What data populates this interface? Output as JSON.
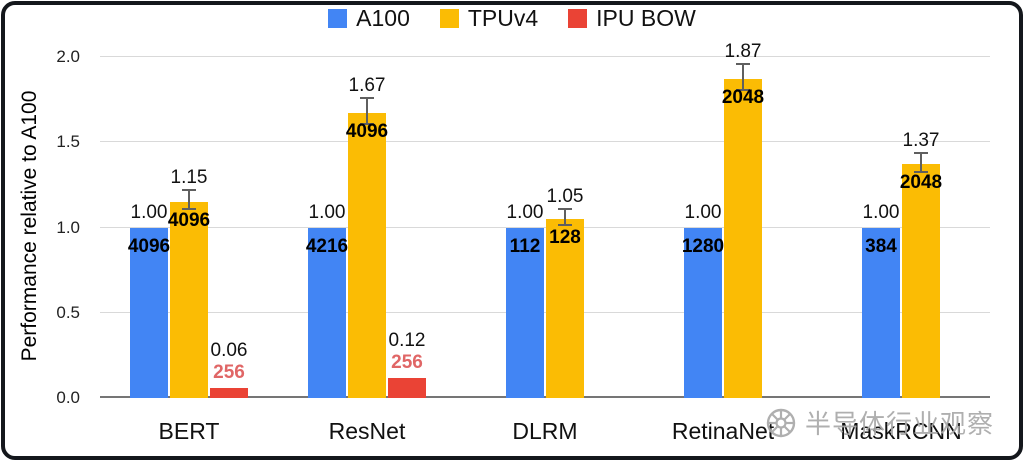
{
  "watermark": {
    "text": "半导体行业观察"
  },
  "chart_data": {
    "type": "bar",
    "title": "",
    "ylabel": "Performance relative to A100",
    "xlabel": "",
    "ylim": [
      0,
      2.0
    ],
    "yticks": [
      0.0,
      0.5,
      1.0,
      1.5,
      2.0
    ],
    "grid": true,
    "legend_position": "top",
    "categories": [
      "BERT",
      "ResNet",
      "DLRM",
      "RetinaNet",
      "MaskRCNN"
    ],
    "series": [
      {
        "name": "A100",
        "color": "#4285F4",
        "values": [
          1.0,
          1.0,
          1.0,
          1.0,
          1.0
        ],
        "value_labels": [
          "1.00",
          "1.00",
          "1.00",
          "1.00",
          "1.00"
        ],
        "inner_labels": [
          "4096",
          "4216",
          "112",
          "1280",
          "384"
        ],
        "inner_label_color": "#000000",
        "errors": null
      },
      {
        "name": "TPUv4",
        "color": "#FBBC04",
        "values": [
          1.15,
          1.67,
          1.05,
          1.87,
          1.37
        ],
        "value_labels": [
          "1.15",
          "1.67",
          "1.05",
          "1.87",
          "1.37"
        ],
        "inner_labels": [
          "4096",
          "4096",
          "128",
          "2048",
          "2048"
        ],
        "inner_label_color": "#000000",
        "errors": [
          0.05,
          0.07,
          0.04,
          0.07,
          0.05
        ]
      },
      {
        "name": "IPU BOW",
        "color": "#EA4335",
        "values": [
          0.06,
          0.12,
          null,
          null,
          null
        ],
        "value_labels": [
          "0.06",
          "0.12",
          null,
          null,
          null
        ],
        "inner_labels": [
          "256",
          "256",
          null,
          null,
          null
        ],
        "inner_label_color": "#e06666",
        "labels_above_bar": true,
        "errors": null
      }
    ]
  }
}
